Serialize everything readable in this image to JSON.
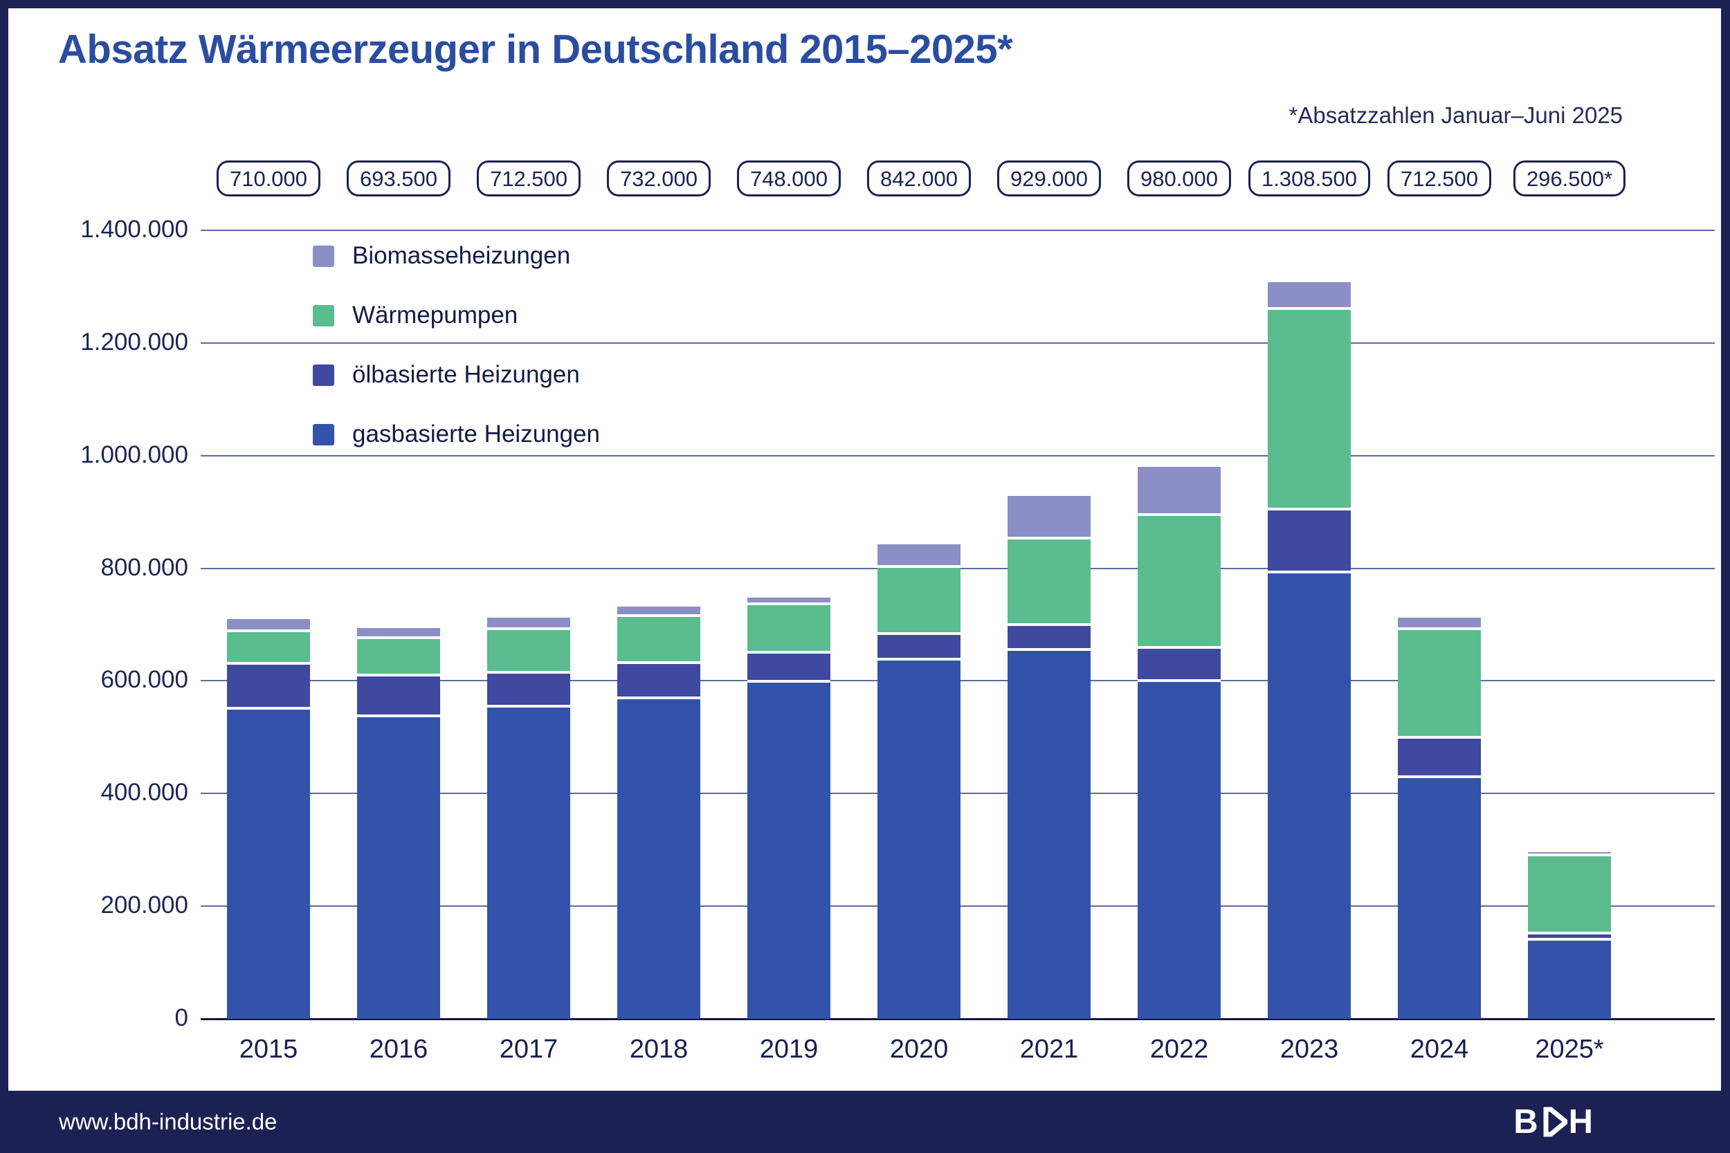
{
  "header": {
    "title": "Absatz Wärmeerzeuger in Deutschland 2015–2025*",
    "subtitle": "*Absatzzahlen Januar–Juni 2025"
  },
  "footer": {
    "url": "www.bdh-industrie.de",
    "logo_text": "BDH"
  },
  "colors": {
    "navy": "#1b2153",
    "title_blue": "#2b4da1",
    "gridline": "#5d6b9e",
    "gas": "#3253a9",
    "oil": "#3f49a0",
    "heatpump": "#5bbc8f",
    "biomass": "#8b8fc6"
  },
  "chart_data": {
    "type": "bar",
    "stacked": true,
    "title": "Absatz Wärmeerzeuger in Deutschland 2015–2025*",
    "categories": [
      "2015",
      "2016",
      "2017",
      "2018",
      "2019",
      "2020",
      "2021",
      "2022",
      "2023",
      "2024",
      "2025*"
    ],
    "total_labels": [
      "710.000",
      "693.500",
      "712.500",
      "732.000",
      "748.000",
      "842.000",
      "929.000",
      "980.000",
      "1.308.500",
      "712.500",
      "296.500*"
    ],
    "totals": [
      710000,
      693500,
      712500,
      732000,
      748000,
      842000,
      929000,
      980000,
      1308500,
      712500,
      296500
    ],
    "series": [
      {
        "name": "gasbasierte Heizungen",
        "color": "#3253a9",
        "values": [
          549000,
          535000,
          552500,
          567500,
          597000,
          636000,
          653000,
          598000,
          790500,
          427500,
          139000
        ]
      },
      {
        "name": "ölbasierte Heizungen",
        "color": "#3f49a0",
        "values": [
          80000,
          72500,
          60000,
          62500,
          52000,
          45000,
          44500,
          59000,
          112500,
          69500,
          10500
        ]
      },
      {
        "name": "Wärmepumpen",
        "color": "#5bbc8f",
        "values": [
          57000,
          66500,
          78000,
          84000,
          86000,
          120000,
          154000,
          236000,
          356000,
          193000,
          139500
        ]
      },
      {
        "name": "Biomasseheizungen",
        "color": "#8b8fc6",
        "values": [
          24000,
          19500,
          22000,
          18000,
          13000,
          41000,
          77500,
          87000,
          49500,
          22500,
          7500
        ]
      }
    ],
    "legend": [
      {
        "label": "Biomasseheizungen",
        "color": "#8b8fc6"
      },
      {
        "label": "Wärmepumpen",
        "color": "#5bbc8f"
      },
      {
        "label": "ölbasierte Heizungen",
        "color": "#3f49a0"
      },
      {
        "label": "gasbasierte Heizungen",
        "color": "#3253a9"
      }
    ],
    "ylim": [
      0,
      1400000
    ],
    "ytick_labels": [
      "1.400.000",
      "1.200.000",
      "1.000.000",
      "800.000",
      "600.000",
      "400.000",
      "200.000",
      "0"
    ],
    "ytick_values": [
      1400000,
      1200000,
      1000000,
      800000,
      600000,
      400000,
      200000,
      0
    ],
    "grid": true,
    "legend_position": "upper-left-inside"
  }
}
